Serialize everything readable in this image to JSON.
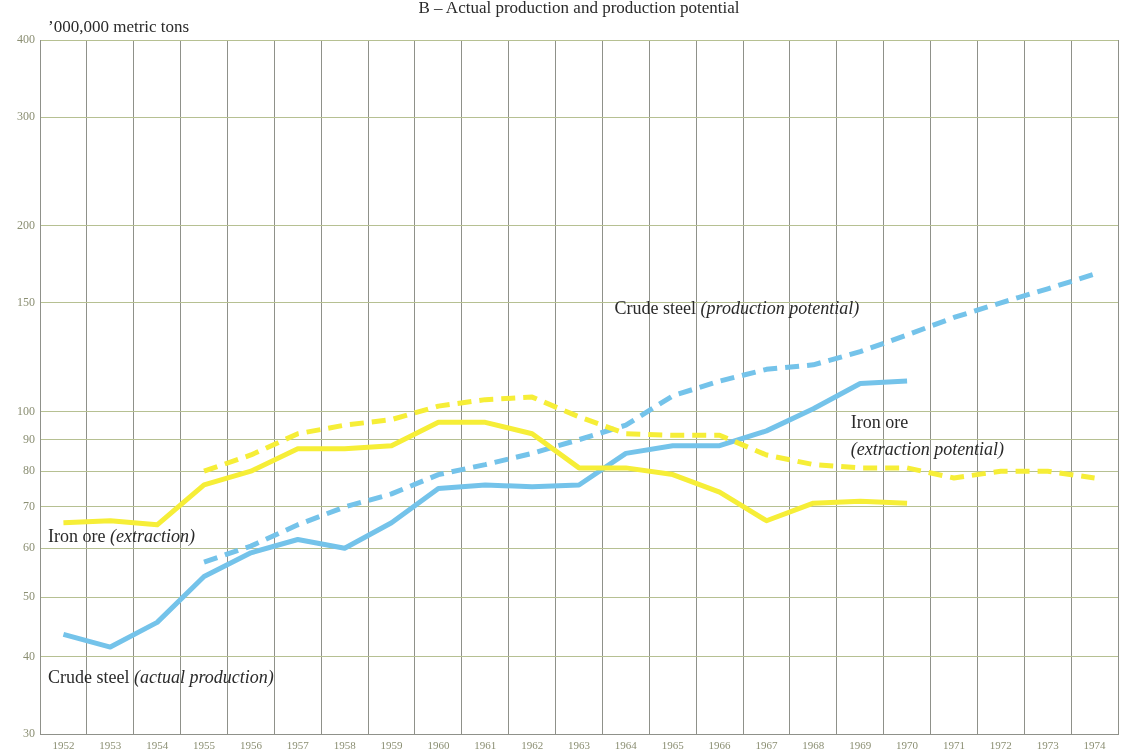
{
  "chart_data": {
    "type": "line",
    "title": "B – Actual production and production potential",
    "ylabel": "’000,000 metric tons",
    "categories": [
      "1952",
      "1953",
      "1954",
      "1955",
      "1956",
      "1957",
      "1958",
      "1959",
      "1960",
      "1961",
      "1962",
      "1963",
      "1964",
      "1965",
      "1966",
      "1967",
      "1968",
      "1969",
      "1970",
      "1971",
      "1972",
      "1973",
      "1974"
    ],
    "series": [
      {
        "name": "Iron ore (extraction)",
        "color": "#f6ee37",
        "line_style": "solid",
        "values": [
          66,
          66.5,
          65.5,
          76,
          80,
          87,
          87,
          88,
          96,
          96,
          92,
          81,
          81,
          79,
          74,
          66.5,
          71,
          71.5,
          71,
          null,
          null,
          null,
          null
        ]
      },
      {
        "name": "Iron ore (extraction potential)",
        "color": "#f6ee37",
        "line_style": "dashed",
        "values": [
          null,
          null,
          null,
          80,
          85,
          92,
          95,
          97,
          102,
          104.5,
          105.5,
          98,
          92,
          91.5,
          91.5,
          85,
          82,
          81,
          81,
          78,
          80,
          80,
          78
        ]
      },
      {
        "name": "Crude steel (actual production)",
        "color": "#74c3ea",
        "line_style": "solid",
        "values": [
          43.5,
          41.5,
          45.5,
          54,
          59,
          62,
          60,
          66,
          75,
          76,
          75.5,
          76,
          85.5,
          88,
          88,
          93,
          101,
          111,
          112,
          null,
          null,
          null,
          null
        ]
      },
      {
        "name": "Crude steel (production potential)",
        "color": "#74c3ea",
        "line_style": "dashed",
        "values": [
          null,
          null,
          null,
          57,
          60.5,
          65.5,
          70,
          73.5,
          79,
          82,
          85.5,
          90,
          95,
          106,
          112,
          117,
          119,
          125,
          133,
          142,
          150,
          158,
          167
        ]
      }
    ],
    "ylim": [
      30,
      400
    ],
    "yticks": [
      30,
      40,
      50,
      60,
      70,
      80,
      90,
      100,
      150,
      200,
      300,
      400
    ],
    "log": true,
    "grid": true,
    "legend": false
  }
}
